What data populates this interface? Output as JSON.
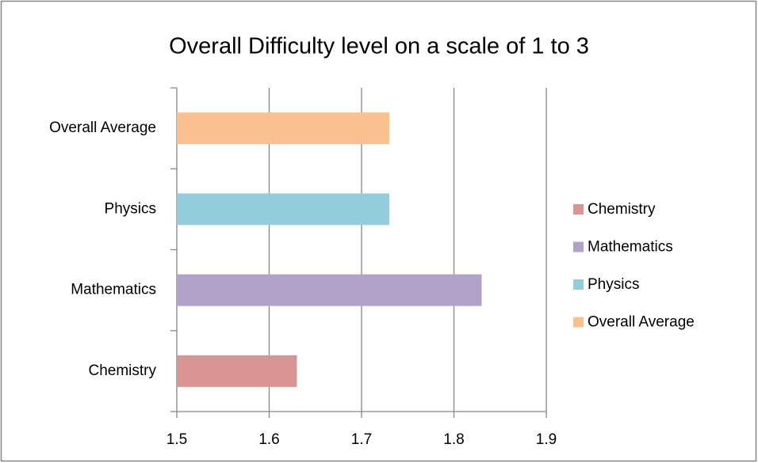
{
  "chart_data": {
    "type": "barh",
    "title": "Overall Difficulty level on a scale of 1 to 3",
    "categories": [
      "Chemistry",
      "Mathematics",
      "Physics",
      "Overall Average"
    ],
    "values": [
      1.63,
      1.83,
      1.73,
      1.73
    ],
    "colors": [
      "#d99594",
      "#b2a2c7",
      "#92cddc",
      "#fac08f"
    ],
    "xlim": [
      1.5,
      1.9
    ],
    "xticks": [
      1.5,
      1.6,
      1.7,
      1.8,
      1.9
    ],
    "grid": true,
    "legend": "right"
  }
}
